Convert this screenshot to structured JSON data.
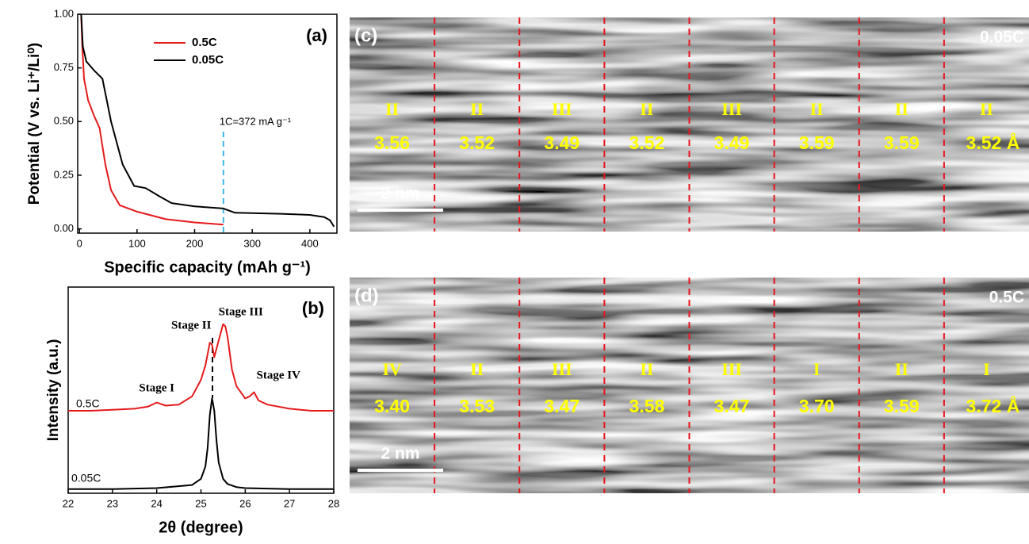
{
  "chart_data": [
    {
      "type": "line",
      "panel_label": "(a)",
      "x_label": "Specific capacity (mAh g⁻¹)",
      "y_label": "Potential (V vs. Li⁺/Li⁰)",
      "xlim": [
        -3,
        447
      ],
      "xticks": [
        0,
        100,
        200,
        300,
        400
      ],
      "ylim": [
        -0.02,
        1.0
      ],
      "yticks": [
        {
          "value": 0,
          "label": "0.00"
        },
        0.25,
        {
          "value": 0.5,
          "label": "0.50"
        },
        0.75,
        {
          "value": 1,
          "label": "1.00"
        }
      ],
      "legend": "upper center",
      "annotation": "1C=372 mA g⁻¹",
      "vline": 250,
      "vline_color": "#3cb6e8",
      "series": [
        {
          "name": "0.5C",
          "color": "#e41a1c",
          "x": [
            3,
            5,
            8,
            15,
            25,
            35,
            45,
            55,
            70,
            100,
            150,
            200,
            250
          ],
          "values": [
            1.0,
            0.85,
            0.7,
            0.6,
            0.53,
            0.47,
            0.3,
            0.18,
            0.11,
            0.08,
            0.045,
            0.03,
            0.02
          ]
        },
        {
          "name": "0.05C",
          "color": "#000000",
          "x": [
            3,
            6,
            12,
            25,
            40,
            55,
            75,
            95,
            115,
            140,
            160,
            200,
            250,
            270,
            350,
            400,
            425,
            435,
            442
          ],
          "values": [
            1.0,
            0.85,
            0.78,
            0.74,
            0.7,
            0.5,
            0.3,
            0.2,
            0.19,
            0.15,
            0.12,
            0.105,
            0.095,
            0.075,
            0.07,
            0.065,
            0.055,
            0.04,
            0.01
          ]
        }
      ]
    },
    {
      "type": "line",
      "panel_label": "(b)",
      "x_label": "2θ (degree)",
      "y_label": "Intensity (a.u.)",
      "xlim": [
        22,
        28
      ],
      "xticks": [
        22,
        23,
        24,
        25,
        26,
        27,
        28
      ],
      "ylim": [
        0,
        1
      ],
      "annotations": [
        "Stage I",
        "Stage II",
        "Stage III",
        "Stage IV"
      ],
      "vline": 25.26,
      "vline_color": "#000000",
      "series": [
        {
          "name": "0.5C",
          "color": "#e41a1c",
          "x": [
            22,
            22.5,
            23,
            23.5,
            23.8,
            24.0,
            24.2,
            24.5,
            24.8,
            25.0,
            25.1,
            25.2,
            25.25,
            25.3,
            25.4,
            25.5,
            25.55,
            25.6,
            25.7,
            25.8,
            26.0,
            26.1,
            26.2,
            26.3,
            26.5,
            27,
            27.5,
            28
          ],
          "values": [
            0.4,
            0.4,
            0.405,
            0.41,
            0.42,
            0.44,
            0.425,
            0.43,
            0.47,
            0.55,
            0.62,
            0.73,
            0.72,
            0.66,
            0.74,
            0.82,
            0.81,
            0.76,
            0.6,
            0.52,
            0.46,
            0.47,
            0.49,
            0.45,
            0.43,
            0.41,
            0.4,
            0.4
          ]
        },
        {
          "name": "0.05C",
          "color": "#000000",
          "x": [
            22,
            23,
            24,
            24.8,
            25.0,
            25.1,
            25.15,
            25.2,
            25.25,
            25.3,
            25.35,
            25.4,
            25.5,
            25.6,
            25.8,
            26,
            27,
            28
          ],
          "values": [
            0.02,
            0.02,
            0.025,
            0.04,
            0.07,
            0.13,
            0.22,
            0.38,
            0.46,
            0.4,
            0.26,
            0.15,
            0.07,
            0.045,
            0.03,
            0.025,
            0.02,
            0.02
          ]
        }
      ]
    }
  ],
  "panels": [
    {
      "label": "(c)",
      "rate": "0.05C",
      "scale_bar": "2 nm",
      "stages": [
        "II",
        "II",
        "III",
        "II",
        "III",
        "II",
        "II",
        "II"
      ],
      "spacings": [
        "3.56",
        "3.52",
        "3.49",
        "3.52",
        "3.49",
        "3.59",
        "3.59",
        "3.52 Å"
      ]
    },
    {
      "label": "(d)",
      "rate": "0.5C",
      "scale_bar": "2 nm",
      "stages": [
        "IV",
        "II",
        "III",
        "II",
        "III",
        "I",
        "II",
        "I"
      ],
      "spacings": [
        "3.40",
        "3.53",
        "3.47",
        "3.58",
        "3.47",
        "3.70",
        "3.59",
        "3.72 Å"
      ]
    }
  ]
}
